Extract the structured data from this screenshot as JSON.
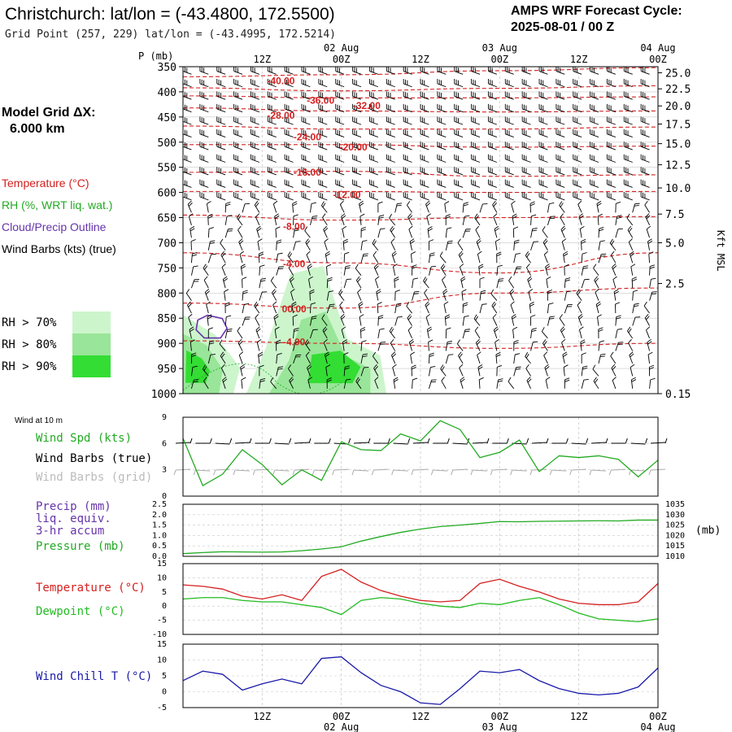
{
  "header": {
    "title": "Christchurch:  lat/lon = (-43.4800, 172.5500)",
    "subtitle": "Grid Point (257, 229) lat/lon = (-43.4995, 172.5214)",
    "cycle_label": "AMPS WRF Forecast Cycle:",
    "cycle_value": "2025-08-01 / 00  Z"
  },
  "left_panel": {
    "model_grid_label": "Model Grid ΔX:",
    "model_grid_value": "6.000 km",
    "legend": [
      {
        "text": "Temperature (°C)",
        "color": "#d42020"
      },
      {
        "text": "RH (%, WRT liq. wat.)",
        "color": "#22aa22"
      },
      {
        "text": "Cloud/Precip Outline",
        "color": "#6633aa"
      },
      {
        "text": "Wind Barbs (kts) (true)",
        "color": "#000000"
      }
    ],
    "rh_legend": [
      {
        "text": "RH > 70%",
        "color": "#ccf5cc"
      },
      {
        "text": "RH > 80%",
        "color": "#99e599"
      },
      {
        "text": "RH > 90%",
        "color": "#33dd33"
      }
    ]
  },
  "time_axis": {
    "top_ticks": [
      "12Z",
      "00Z",
      "12Z",
      "00Z",
      "12Z",
      "00Z"
    ],
    "top_dates": [
      "02 Aug",
      "03 Aug",
      "04 Aug"
    ],
    "bottom_ticks": [
      "12Z",
      "00Z",
      "12Z",
      "00Z",
      "12Z",
      "00Z"
    ],
    "bottom_dates": [
      "02 Aug",
      "03 Aug",
      "04 Aug"
    ]
  },
  "colors": {
    "temperature": "#d42020",
    "rh_line": "#22aa22",
    "cloud": "#6633aa",
    "wind_chill": "#1a1aaa",
    "dewpoint": "#22bb22",
    "grid": "#c8c8c8"
  },
  "chart_data": [
    {
      "type": "heatmap",
      "name": "cross-section",
      "y_axis_label": "P (mb)",
      "y_ticks": [
        "350",
        "400",
        "450",
        "500",
        "550",
        "600",
        "650",
        "700",
        "750",
        "800",
        "850",
        "900",
        "950",
        "1000"
      ],
      "right_axis_label": "Kft MSL",
      "right_ticks": [
        "25.0",
        "22.5",
        "20.0",
        "17.5",
        "15.0",
        "12.5",
        "10.0",
        "7.5",
        "5.0",
        "2.5",
        "0.15"
      ],
      "right_tick_pressures": [
        362,
        394,
        428,
        464,
        503,
        545,
        591,
        643,
        700,
        781,
        1000
      ],
      "temperature_contours": [
        {
          "label": "-40.00",
          "t": 13,
          "p": 378,
          "levels": [
            [
              0,
              370
            ],
            [
              24,
              366
            ],
            [
              48,
              358
            ],
            [
              72,
              352
            ]
          ]
        },
        {
          "label": "-36.00",
          "t": 19,
          "p": 417,
          "levels": [
            [
              0,
              392
            ],
            [
              24,
              398
            ],
            [
              48,
              393
            ],
            [
              72,
              388
            ]
          ]
        },
        {
          "label": "-32.00",
          "t": 26,
          "p": 428,
          "levels": [
            [
              0,
              408
            ],
            [
              24,
              412
            ],
            [
              48,
              412
            ],
            [
              72,
              410
            ]
          ]
        },
        {
          "label": "-28.00",
          "t": 13,
          "p": 447,
          "levels": [
            [
              0,
              432
            ],
            [
              24,
              438
            ],
            [
              48,
              440
            ],
            [
              72,
              438
            ]
          ]
        },
        {
          "label": "-24.00",
          "t": 17,
          "p": 490,
          "levels": [
            [
              0,
              468
            ],
            [
              24,
              474
            ],
            [
              48,
              474
            ],
            [
              72,
              470
            ]
          ]
        },
        {
          "label": "-20.00",
          "t": 24,
          "p": 510,
          "levels": [
            [
              0,
              505
            ],
            [
              24,
              505
            ],
            [
              48,
              510
            ],
            [
              72,
              508
            ]
          ]
        },
        {
          "label": "-16.00",
          "t": 17,
          "p": 560,
          "levels": [
            [
              0,
              560
            ],
            [
              24,
              558
            ],
            [
              48,
              568
            ],
            [
              72,
              565
            ]
          ]
        },
        {
          "label": "-12.00",
          "t": 23,
          "p": 605,
          "levels": [
            [
              0,
              598
            ],
            [
              24,
              598
            ],
            [
              48,
              600
            ],
            [
              72,
              598
            ]
          ]
        },
        {
          "label": "-8.00",
          "t": 15,
          "p": 668,
          "levels": [
            [
              0,
              645
            ],
            [
              24,
              655
            ],
            [
              48,
              650
            ],
            [
              72,
              648
            ]
          ]
        },
        {
          "label": "-4.00",
          "t": 15,
          "p": 742,
          "levels": [
            [
              0,
              720
            ],
            [
              24,
              740
            ],
            [
              48,
              760
            ],
            [
              72,
              720
            ]
          ]
        },
        {
          "label": "00.00",
          "t": 15,
          "p": 832,
          "levels": [
            [
              0,
              820
            ],
            [
              24,
              830
            ],
            [
              48,
              800
            ],
            [
              72,
              790
            ]
          ]
        },
        {
          "label": "-4.00",
          "t": 15,
          "p": 897,
          "levels": [
            [
              0,
              895
            ],
            [
              24,
              900
            ],
            [
              48,
              910
            ],
            [
              72,
              900
            ]
          ]
        }
      ],
      "rh_regions": [
        {
          "level": 70,
          "t": 0,
          "p": 900
        },
        {
          "level": 80,
          "t": 0.5,
          "p": 920
        },
        {
          "level": 90,
          "t": 1,
          "p": 930
        },
        {
          "level": 70,
          "t": 20,
          "p": 940
        },
        {
          "level": 80,
          "t": 21,
          "p": 950
        },
        {
          "level": 90,
          "t": 22,
          "p": 955
        }
      ],
      "cloud_outline": {
        "t": 1.5,
        "p": 857
      },
      "wind_barb_rows_p": [
        365,
        390,
        415,
        440,
        465,
        490,
        515,
        540,
        565,
        590,
        615,
        640,
        665,
        690,
        715,
        740,
        765,
        790,
        815,
        840,
        865,
        890,
        915,
        940,
        965,
        990
      ],
      "wind_barb_columns": 28
    },
    {
      "type": "line",
      "name": "wind",
      "title": "Wind at 10 m",
      "labels": [
        "Wind Spd (kts)",
        "Wind Barbs (true)",
        "Wind Barbs (grid)"
      ],
      "label_colors": [
        "#22aa22",
        "#000000",
        "#bbbbbb"
      ],
      "y_ticks": [
        "9",
        "6",
        "3",
        "0"
      ],
      "ylim": [
        0,
        9
      ],
      "x": [
        0,
        3,
        6,
        9,
        12,
        15,
        18,
        21,
        24,
        27,
        30,
        33,
        36,
        39,
        42,
        45,
        48,
        51,
        54,
        57,
        60,
        63,
        66,
        69,
        72
      ],
      "series": [
        {
          "values": [
            6.6,
            1.2,
            2.5,
            5.3,
            3.6,
            1.3,
            3.0,
            1.8,
            6.2,
            5.3,
            5.2,
            7.1,
            6.3,
            8.6,
            7.6,
            4.4,
            5.0,
            6.4,
            2.8,
            4.6,
            4.4,
            4.6,
            4.2,
            2.2,
            4.1
          ]
        }
      ]
    },
    {
      "type": "line",
      "name": "precip-pressure",
      "labels": [
        "Precip (mm)",
        "liq. equiv.",
        "3-hr accum",
        "Pressure (mb)"
      ],
      "label_colors": [
        "#6633aa",
        "#6633aa",
        "#6633aa",
        "#22aa22"
      ],
      "y_ticks": [
        "2.5",
        "2.0",
        "1.5",
        "1.0",
        "0.5",
        "0.0"
      ],
      "ylim": [
        0,
        2.5
      ],
      "right_ticks": [
        "1035",
        "1030",
        "1025",
        "1020",
        "1015",
        "1010"
      ],
      "right_unit": "(mb)",
      "right_ylim": [
        1010,
        1035
      ],
      "x": [
        0,
        3,
        6,
        9,
        12,
        15,
        18,
        21,
        24,
        27,
        30,
        33,
        36,
        39,
        42,
        45,
        48,
        51,
        54,
        57,
        60,
        63,
        66,
        69,
        72
      ],
      "series": [
        {
          "name": "Pressure (mb)",
          "values": [
            1011.3,
            1011.8,
            1012.2,
            1012.1,
            1012.0,
            1012.1,
            1012.7,
            1013.5,
            1014.6,
            1017.3,
            1019.5,
            1021.5,
            1023.1,
            1024.3,
            1025.0,
            1025.8,
            1026.7,
            1026.6,
            1026.8,
            1026.9,
            1027.0,
            1027.1,
            1027.0,
            1027.4,
            1027.4
          ]
        }
      ]
    },
    {
      "type": "line",
      "name": "temperature-dewpoint",
      "labels": [
        "Temperature (°C)",
        "Dewpoint (°C)"
      ],
      "label_colors": [
        "#d42020",
        "#22bb22"
      ],
      "y_ticks": [
        "15",
        "10",
        "5",
        "0",
        "-5",
        "-10"
      ],
      "ylim": [
        -10,
        15
      ],
      "x": [
        0,
        3,
        6,
        9,
        12,
        15,
        18,
        21,
        24,
        27,
        30,
        33,
        36,
        39,
        42,
        45,
        48,
        51,
        54,
        57,
        60,
        63,
        66,
        69,
        72
      ],
      "series": [
        {
          "name": "Temperature (°C)",
          "values": [
            7.5,
            7.0,
            6.0,
            3.5,
            2.5,
            4.0,
            2.0,
            10.5,
            13.0,
            8.5,
            5.5,
            3.5,
            2.0,
            1.5,
            2.0,
            8.0,
            9.5,
            7.0,
            5.0,
            2.5,
            1.0,
            0.5,
            0.5,
            1.5,
            8.0
          ]
        },
        {
          "name": "Dewpoint (°C)",
          "values": [
            2.5,
            3.0,
            3.0,
            2.0,
            1.5,
            1.5,
            0.5,
            -0.5,
            -3.0,
            2.0,
            3.0,
            2.5,
            1.0,
            0.0,
            -0.5,
            1.0,
            0.5,
            2.0,
            3.0,
            0.5,
            -2.5,
            -4.5,
            -5.0,
            -5.5,
            -4.5
          ]
        }
      ]
    },
    {
      "type": "line",
      "name": "wind-chill",
      "labels": [
        "Wind Chill T (°C)"
      ],
      "label_colors": [
        "#1a1aaa"
      ],
      "y_ticks": [
        "15",
        "10",
        "5",
        "0",
        "-5"
      ],
      "ylim": [
        -5,
        15
      ],
      "x": [
        0,
        3,
        6,
        9,
        12,
        15,
        18,
        21,
        24,
        27,
        30,
        33,
        36,
        39,
        42,
        45,
        48,
        51,
        54,
        57,
        60,
        63,
        66,
        69,
        72
      ],
      "series": [
        {
          "name": "Wind Chill T (°C)",
          "values": [
            3.5,
            6.5,
            5.5,
            0.5,
            2.5,
            4.0,
            2.5,
            10.5,
            11.0,
            6.0,
            2.0,
            0.0,
            -3.5,
            -4.0,
            1.0,
            6.5,
            6.0,
            7.0,
            3.5,
            1.0,
            -0.5,
            -1.0,
            -0.5,
            1.5,
            7.5
          ]
        }
      ]
    }
  ]
}
